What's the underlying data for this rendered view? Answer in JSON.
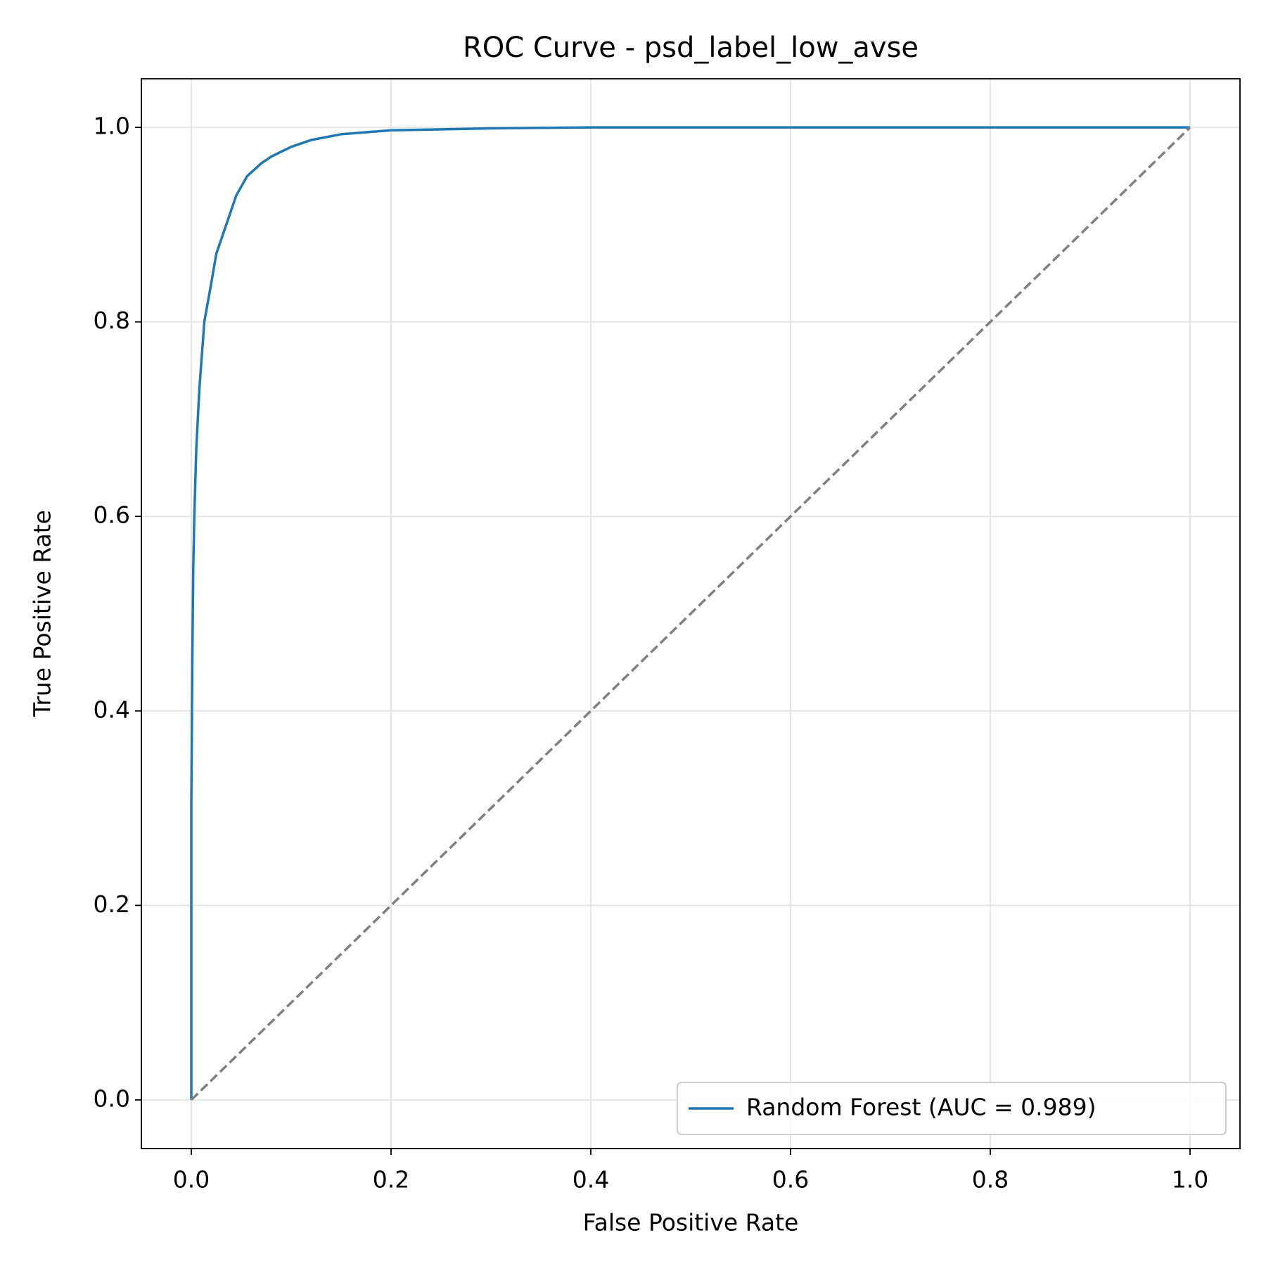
{
  "chart_data": {
    "type": "line",
    "title": "ROC Curve - psd_label_low_avse",
    "x_label": "False Positive Rate",
    "y_label": "True Positive Rate",
    "series": [
      {
        "name": "Random Forest (AUC = 0.989)",
        "color": "#1f77b4",
        "style": "solid",
        "x": [
          0,
          0,
          0.001,
          0.002,
          0.003,
          0.005,
          0.008,
          0.013,
          0.02,
          0.025,
          0.035,
          0.045,
          0.056,
          0.07,
          0.08,
          0.1,
          0.12,
          0.15,
          0.2,
          0.3,
          0.4,
          1
        ],
        "values": [
          0,
          0.3,
          0.45,
          0.55,
          0.6,
          0.67,
          0.73,
          0.8,
          0.84,
          0.87,
          0.9,
          0.93,
          0.95,
          0.963,
          0.97,
          0.98,
          0.987,
          0.993,
          0.997,
          0.999,
          1,
          1
        ]
      },
      {
        "color": "#808080",
        "style": "dashed",
        "x": [
          0,
          1
        ],
        "values": [
          0,
          1
        ]
      }
    ],
    "xlim": [
      -0.05,
      1.05
    ],
    "ylim": [
      -0.05,
      1.05
    ],
    "xticks": [
      {
        "value": 0,
        "label": "0.0"
      },
      0.2,
      0.4,
      0.6,
      0.8,
      {
        "value": 1,
        "label": "1.0"
      }
    ],
    "yticks": [
      {
        "value": 0,
        "label": "0.0"
      },
      0.2,
      0.4,
      0.6,
      0.8,
      {
        "value": 1,
        "label": "1.0"
      }
    ],
    "grid": true,
    "legend": "lower right"
  }
}
